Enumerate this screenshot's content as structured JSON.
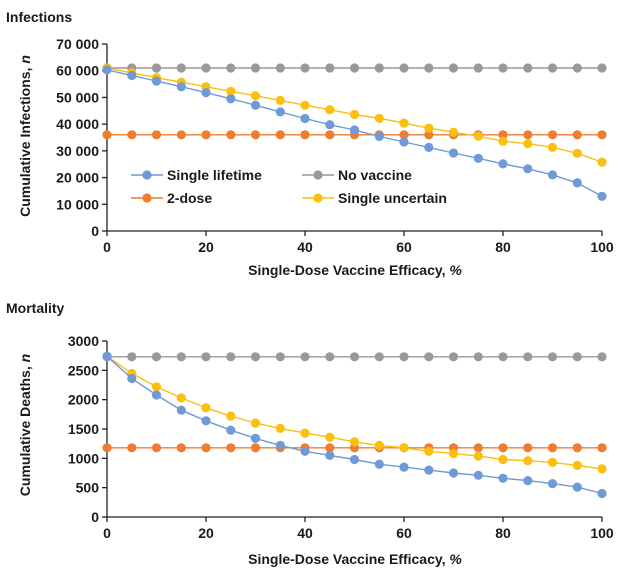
{
  "chart_data": [
    {
      "type": "line",
      "title": "Infections",
      "xlabel_text": "Single-Dose Vaccine Efficacy, ",
      "xlabel_unit": "%",
      "ylabel_text": "Cumulative Infections, ",
      "ylabel_unit": "n",
      "xlim": [
        0,
        100
      ],
      "ylim": [
        0,
        70000
      ],
      "xticks": [
        0,
        20,
        40,
        60,
        80,
        100
      ],
      "xtick_labels": [
        "0",
        "20",
        "40",
        "60",
        "80",
        "100"
      ],
      "yticks": [
        0,
        10000,
        20000,
        30000,
        40000,
        50000,
        60000,
        70000
      ],
      "ytick_labels": [
        "0",
        "10 000",
        "20 000",
        "30 000",
        "40 000",
        "50 000",
        "60 000",
        "70 000"
      ],
      "grid": false,
      "x": [
        0,
        5,
        10,
        15,
        20,
        25,
        30,
        35,
        40,
        45,
        50,
        55,
        60,
        65,
        70,
        75,
        80,
        85,
        90,
        95,
        100
      ],
      "series": [
        {
          "name": "No vaccine",
          "color": "#999999",
          "values": [
            61000,
            61000,
            61000,
            61000,
            61000,
            61000,
            61000,
            61000,
            61000,
            61000,
            61000,
            61000,
            61000,
            61000,
            61000,
            61000,
            61000,
            61000,
            61000,
            61000,
            61000
          ]
        },
        {
          "name": "2-dose",
          "color": "#EE7D31",
          "values": [
            36000,
            36000,
            36000,
            36000,
            36000,
            36000,
            36000,
            36000,
            36000,
            36000,
            36000,
            36000,
            36000,
            36000,
            36000,
            36000,
            36000,
            36000,
            36000,
            36000,
            36000
          ]
        },
        {
          "name": "Single uncertain",
          "color": "#FBBF10",
          "values": [
            61000,
            59200,
            57400,
            55700,
            54000,
            52300,
            50600,
            48900,
            47100,
            45400,
            43600,
            42200,
            40400,
            38500,
            37000,
            35500,
            33600,
            32700,
            31300,
            29100,
            25800
          ]
        },
        {
          "name": "Single lifetime",
          "color": "#6F9AD6",
          "values": [
            60300,
            58200,
            56100,
            54000,
            51800,
            49500,
            47100,
            44600,
            42100,
            39800,
            37800,
            35400,
            33300,
            31300,
            29200,
            27200,
            25100,
            23300,
            21000,
            18000,
            13000
          ]
        }
      ],
      "legend": {
        "placement": "center-left",
        "order": [
          "Single lifetime",
          "No vaccine",
          "2-dose",
          "Single uncertain"
        ]
      }
    },
    {
      "type": "line",
      "title": "Mortality",
      "xlabel_text": "Single-Dose Vaccine Efficacy, ",
      "xlabel_unit": "%",
      "ylabel_text": "Cumulative Deaths, ",
      "ylabel_unit": "n",
      "xlim": [
        0,
        100
      ],
      "ylim": [
        0,
        3000
      ],
      "xticks": [
        0,
        20,
        40,
        60,
        80,
        100
      ],
      "xtick_labels": [
        "0",
        "20",
        "40",
        "60",
        "80",
        "100"
      ],
      "yticks": [
        0,
        500,
        1000,
        1500,
        2000,
        2500,
        3000
      ],
      "ytick_labels": [
        "0",
        "500",
        "1000",
        "1500",
        "2000",
        "2500",
        "3000"
      ],
      "grid": false,
      "x": [
        0,
        5,
        10,
        15,
        20,
        25,
        30,
        35,
        40,
        45,
        50,
        55,
        60,
        65,
        70,
        75,
        80,
        85,
        90,
        95,
        100
      ],
      "series": [
        {
          "name": "No vaccine",
          "color": "#999999",
          "values": [
            2730,
            2730,
            2730,
            2730,
            2730,
            2730,
            2730,
            2730,
            2730,
            2730,
            2730,
            2730,
            2730,
            2730,
            2730,
            2730,
            2730,
            2730,
            2730,
            2730,
            2730
          ]
        },
        {
          "name": "2-dose",
          "color": "#EE7D31",
          "values": [
            1180,
            1180,
            1180,
            1180,
            1180,
            1180,
            1180,
            1180,
            1180,
            1180,
            1180,
            1180,
            1180,
            1180,
            1180,
            1180,
            1180,
            1180,
            1180,
            1180,
            1180
          ]
        },
        {
          "name": "Single uncertain",
          "color": "#FBBF10",
          "values": [
            2740,
            2450,
            2220,
            2030,
            1860,
            1720,
            1600,
            1510,
            1430,
            1360,
            1280,
            1220,
            1180,
            1120,
            1080,
            1040,
            980,
            960,
            930,
            880,
            820
          ]
        },
        {
          "name": "Single lifetime",
          "color": "#6F9AD6",
          "values": [
            2740,
            2360,
            2080,
            1820,
            1640,
            1480,
            1340,
            1220,
            1120,
            1050,
            980,
            900,
            850,
            800,
            750,
            710,
            660,
            620,
            570,
            510,
            400
          ]
        }
      ]
    }
  ]
}
